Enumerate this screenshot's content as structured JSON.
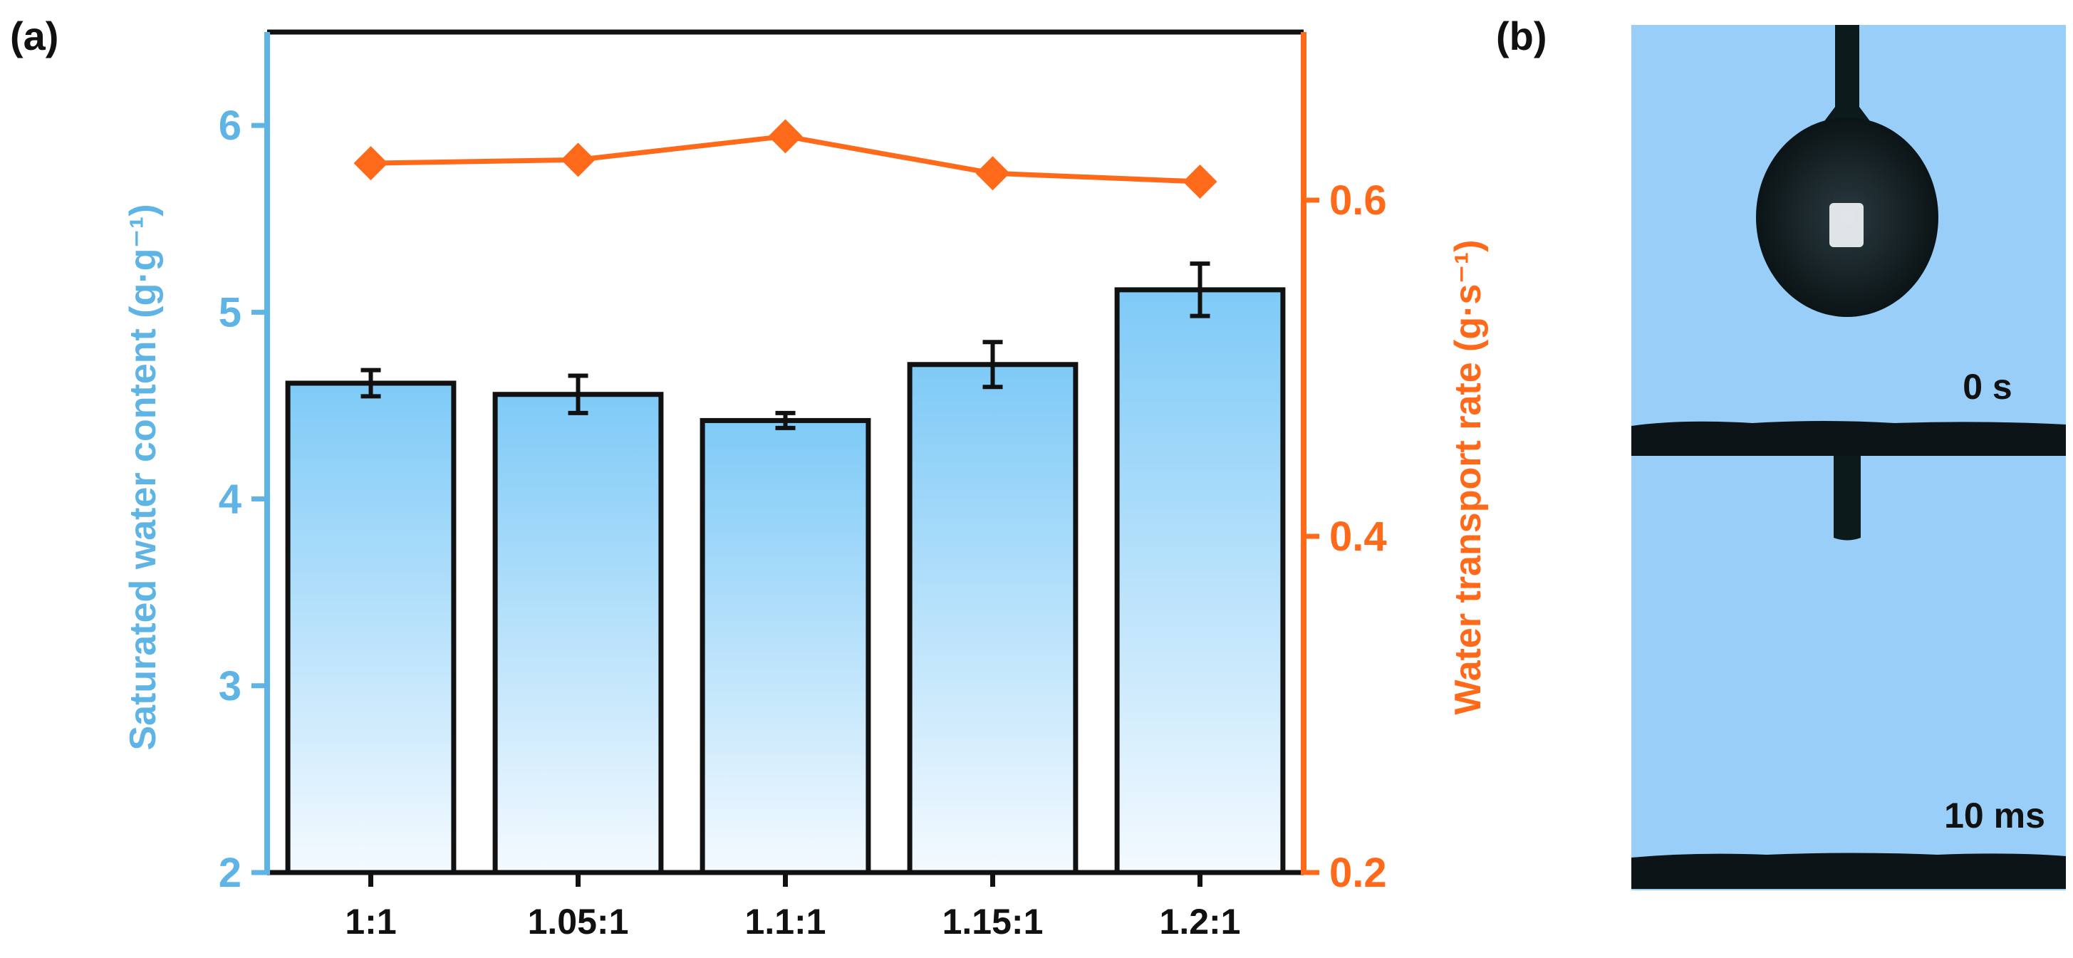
{
  "panels": {
    "a_label": "(a)",
    "b_label": "(b)"
  },
  "chart_data": {
    "type": "bar",
    "title": "",
    "categories": [
      "1:1",
      "1.05:1",
      "1.1:1",
      "1.15:1",
      "1.2:1"
    ],
    "bar_series": {
      "name": "Saturated water content",
      "values": [
        4.62,
        4.56,
        4.42,
        4.72,
        5.12
      ],
      "errors": [
        0.07,
        0.1,
        0.04,
        0.12,
        0.14
      ],
      "axis": "left"
    },
    "line_series": {
      "name": "Water transport rate",
      "values": [
        0.622,
        0.624,
        0.638,
        0.616,
        0.611
      ],
      "axis": "right"
    },
    "ylabel_left": "Saturated water content (g·g⁻¹)",
    "ylabel_right": "Water transport rate (g·s⁻¹)",
    "ylim_left": [
      2,
      6.5
    ],
    "ylim_right": [
      0.2,
      0.7
    ],
    "yticks_left": [
      "2",
      "3",
      "4",
      "5",
      "6"
    ],
    "yticks_right": [
      "0.2",
      "0.4",
      "0.6"
    ],
    "colors": {
      "left_axis": "#5fb4e6",
      "right_axis": "#ff6a1a",
      "bar_top": "#7ecaf7",
      "bar_bottom": "#f4faff",
      "edge": "#111111"
    }
  },
  "photo": {
    "labels": [
      "0 s",
      "10 ms"
    ],
    "background_color": "#98cef8"
  }
}
